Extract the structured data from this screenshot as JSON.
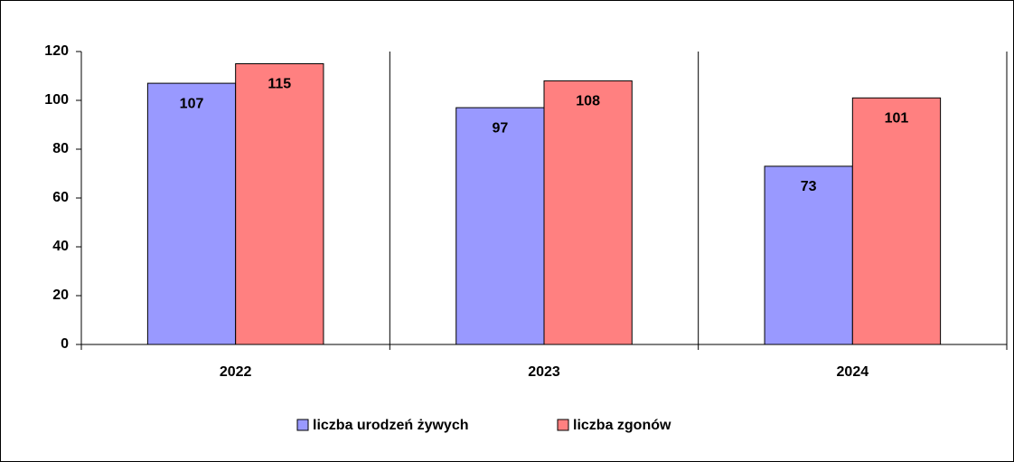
{
  "chart_data": {
    "type": "bar",
    "categories": [
      "2022",
      "2023",
      "2024"
    ],
    "series": [
      {
        "name": "liczba urodzeń żywych",
        "color": "#9999ff",
        "values": [
          107,
          97,
          73
        ]
      },
      {
        "name": "liczba zgonów",
        "color": "#ff8080",
        "values": [
          115,
          108,
          101
        ]
      }
    ],
    "ylim": [
      0,
      120
    ],
    "yticks": [
      0,
      20,
      40,
      60,
      80,
      100,
      120
    ],
    "legend": "bottom"
  }
}
